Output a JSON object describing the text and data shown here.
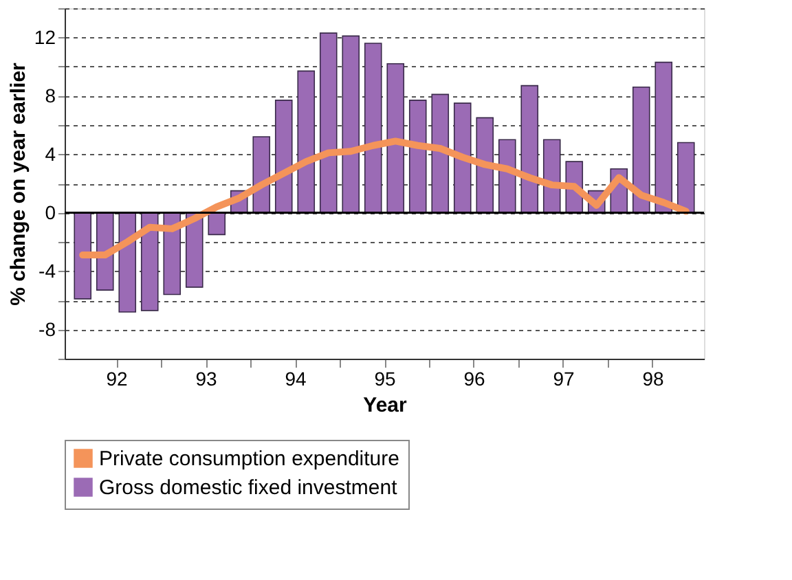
{
  "chart_data": {
    "type": "bar",
    "xlabel": "Year",
    "ylabel": "% change on year earlier",
    "x": [
      92.125,
      92.375,
      92.625,
      92.875,
      93.125,
      93.375,
      93.625,
      93.875,
      94.125,
      94.375,
      94.625,
      94.875,
      95.125,
      95.375,
      95.625,
      95.875,
      96.125,
      96.375,
      96.625,
      96.875,
      97.125,
      97.375,
      97.625,
      97.875,
      98.125,
      98.375,
      98.625,
      98.875
    ],
    "series": [
      {
        "name": "Private consumption expenditure",
        "type": "line",
        "color": "#f4945a",
        "values": [
          -2.9,
          -2.9,
          -2.0,
          -1.0,
          -1.1,
          -0.4,
          0.4,
          1.0,
          1.9,
          2.7,
          3.5,
          4.1,
          4.2,
          4.6,
          4.9,
          4.6,
          4.4,
          3.8,
          3.3,
          3.0,
          2.4,
          1.9,
          1.8,
          0.5,
          2.4,
          1.2,
          0.7,
          0.1
        ]
      },
      {
        "name": "Gross domestic fixed investment",
        "color": "#9b6bb5",
        "values": [
          -5.9,
          -5.3,
          -6.8,
          -6.7,
          -5.6,
          -5.1,
          -1.5,
          1.5,
          5.2,
          7.7,
          9.7,
          12.3,
          12.1,
          11.6,
          10.2,
          7.7,
          8.1,
          7.5,
          6.5,
          5.0,
          8.7,
          5.0,
          3.5,
          1.5,
          3.0,
          8.6,
          10.3,
          4.8
        ]
      }
    ],
    "xlim": [
      92,
      99
    ],
    "xticks": [
      {
        "value": 92.5,
        "label": "92"
      },
      {
        "value": 93,
        "label": null
      },
      {
        "value": 93.5,
        "label": "93"
      },
      {
        "value": 94,
        "label": null
      },
      {
        "value": 94.5,
        "label": "94"
      },
      {
        "value": 95,
        "label": null
      },
      {
        "value": 95.5,
        "label": "95"
      },
      {
        "value": 96,
        "label": null
      },
      {
        "value": 96.5,
        "label": "96"
      },
      {
        "value": 97,
        "label": null
      },
      {
        "value": 97.5,
        "label": "97"
      },
      {
        "value": 98,
        "label": null
      },
      {
        "value": 98.5,
        "label": "98"
      }
    ],
    "ylim": [
      -10,
      14
    ],
    "yticks": [
      {
        "value": -10,
        "label": null
      },
      -8,
      {
        "value": -6,
        "label": null
      },
      -4,
      {
        "value": -2,
        "label": null
      },
      0,
      {
        "value": 2,
        "label": null
      },
      4,
      {
        "value": 6,
        "label": null
      },
      8,
      {
        "value": 10,
        "label": null
      },
      12,
      {
        "value": 14,
        "label": null
      }
    ],
    "grid": "y",
    "line_style": "solid",
    "marker": "none",
    "legend": "bottom"
  }
}
